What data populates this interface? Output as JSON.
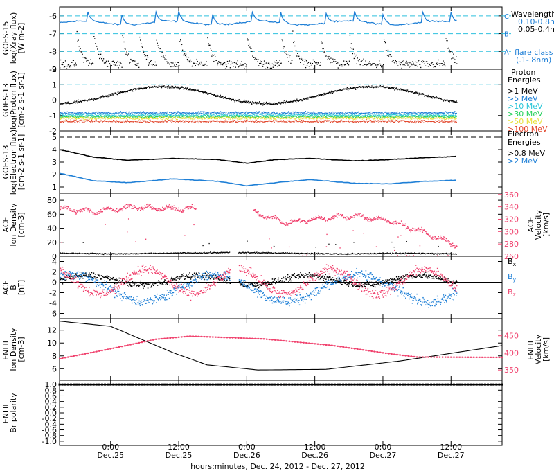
{
  "colors": {
    "black": "#000000",
    "blue": "#1e7fd6",
    "cyan": "#2ac6d8",
    "pink": "#f0416d",
    "green": "#25d05a",
    "yellow": "#e8e03a",
    "orange": "#f09a23",
    "red": "#e2462c",
    "dashed_cyan": "#2fc0de"
  },
  "footer": {
    "xlabel": "hours:minutes, Dec. 24, 2012 - Dec. 27, 2012",
    "ticks": [
      {
        "t": 9,
        "time": "0:00",
        "date": "Dec.25"
      },
      {
        "t": 21,
        "time": "12:00",
        "date": "Dec.25"
      },
      {
        "t": 33,
        "time": "0:00",
        "date": "Dec.26"
      },
      {
        "t": 45,
        "time": "12:00",
        "date": "Dec.26"
      },
      {
        "t": 57,
        "time": "0:00",
        "date": "Dec.27"
      },
      {
        "t": 69,
        "time": "12:00",
        "date": "Dec.27"
      }
    ],
    "xlim_hours_from_dec24_15h": [
      0,
      78
    ]
  },
  "chart_data": [
    {
      "id": "goes15-xray",
      "type": "line",
      "ylabel": [
        "GOES-15",
        "log(Xray flux)",
        "[W m-2]"
      ],
      "ylim": [
        -9,
        -5.5
      ],
      "yticks": [
        -9,
        -8,
        -7,
        -6
      ],
      "legend_title": "Wavelength",
      "legend": [
        {
          "label": "0.10-0.8nm",
          "color": "blue"
        },
        {
          "label": "0.05-0.4nm",
          "color": "black"
        },
        {
          "label": "flare class",
          "color": "blue"
        },
        {
          "label": "(.1-.8nm)",
          "color": "blue"
        }
      ],
      "flare_classes": [
        {
          "label": "C",
          "y": -6
        },
        {
          "label": "B",
          "y": -7
        },
        {
          "label": "A",
          "y": -8
        }
      ],
      "series": [
        {
          "name": "0.10-0.8nm",
          "baseline": -6.4,
          "spikes_x": [
            5,
            11,
            17,
            21,
            27,
            34,
            39,
            47,
            52,
            57,
            64,
            69
          ]
        },
        {
          "name": "0.05-0.4nm",
          "baseline": -8.5,
          "spikes_x": [
            3,
            6,
            11,
            14,
            17,
            21,
            26,
            33,
            39,
            41,
            46,
            51,
            57,
            68,
            70
          ]
        }
      ]
    },
    {
      "id": "goes13-proton",
      "type": "scatter",
      "ylabel": [
        "GOES-13",
        "log(Proton flux)",
        "[cm-2 s-1 sr-1]"
      ],
      "ylim": [
        -2,
        2
      ],
      "yticks": [
        -2,
        -1,
        0,
        1,
        2
      ],
      "reference_line": 1,
      "legend_title": [
        "Proton",
        "Energies"
      ],
      "series": [
        {
          "name": ">1 MeV",
          "color": "black",
          "level": 0.3
        },
        {
          "name": ">5 MeV",
          "color": "blue",
          "level": -0.8
        },
        {
          "name": ">10 MeV",
          "color": "cyan",
          "level": -0.95
        },
        {
          "name": ">30 MeV",
          "color": "green",
          "level": -1.05
        },
        {
          "name": ">50 MeV",
          "color": "yellow",
          "level": -1.15
        },
        {
          "name": ">100 MeV",
          "color": "red",
          "level": -1.35
        }
      ]
    },
    {
      "id": "goes13-electron",
      "type": "line",
      "ylabel": [
        "GOES-13",
        "log(Electron flux)",
        "[cm-2 s-1 sr-1]"
      ],
      "ylim": [
        0.5,
        5.5
      ],
      "yticks": [
        1,
        2,
        3,
        4,
        5
      ],
      "reference_line": 5,
      "legend_title": [
        "Electron",
        "Energies"
      ],
      "series": [
        {
          "name": ">0.8 MeV",
          "color": "black",
          "x": [
            0,
            6,
            12,
            20,
            28,
            33,
            38,
            44,
            52,
            58,
            64,
            70
          ],
          "y": [
            4.0,
            3.4,
            3.15,
            3.3,
            3.2,
            2.9,
            3.2,
            3.3,
            3.1,
            3.2,
            3.35,
            3.45
          ]
        },
        {
          "name": ">2 MeV",
          "color": "blue",
          "x": [
            0,
            6,
            12,
            20,
            28,
            33,
            38,
            44,
            52,
            58,
            64,
            70
          ],
          "y": [
            2.1,
            1.5,
            1.35,
            1.65,
            1.45,
            1.1,
            1.35,
            1.6,
            1.3,
            1.25,
            1.45,
            1.55
          ]
        }
      ]
    },
    {
      "id": "ace-plasma",
      "type": "scatter",
      "ylabel": [
        "ACE",
        "Ion Density",
        "[cm-3]"
      ],
      "ylim": [
        0,
        90
      ],
      "yticks": [
        0,
        20,
        40,
        60,
        80
      ],
      "y2label": [
        "ACE",
        "Velocity",
        "[km/s]"
      ],
      "y2lim": [
        260,
        362
      ],
      "y2ticks": [
        260,
        280,
        300,
        320,
        340,
        360
      ],
      "series": [
        {
          "name": "Ion Density",
          "color": "black",
          "x": [
            0,
            10,
            20,
            30,
            40,
            50,
            60,
            70
          ],
          "y": [
            5,
            4,
            5,
            6,
            5,
            4,
            5,
            4
          ]
        },
        {
          "name": "Velocity",
          "color": "pink",
          "x": [
            0,
            6,
            12,
            18,
            24,
            30,
            34,
            40,
            46,
            52,
            58,
            64,
            70
          ],
          "y": [
            338,
            333,
            340,
            338,
            338,
            null,
            332,
            315,
            322,
            326,
            318,
            300,
            278
          ]
        }
      ]
    },
    {
      "id": "ace-mag",
      "type": "scatter",
      "ylabel": [
        "ACE",
        "B",
        "[nT]"
      ],
      "ylim": [
        -7,
        5
      ],
      "yticks": [
        -6,
        -4,
        -2,
        0,
        2,
        4
      ],
      "series": [
        {
          "name": "Bx",
          "color": "black",
          "label_main": "B",
          "label_sub": "x",
          "level": 0.5
        },
        {
          "name": "By",
          "color": "blue",
          "label_main": "B",
          "label_sub": "y",
          "level": -1.0
        },
        {
          "name": "Bz",
          "color": "pink",
          "label_main": "B",
          "label_sub": "z",
          "level": 0.2
        }
      ]
    },
    {
      "id": "enlil-plasma",
      "type": "line",
      "ylabel": [
        "ENLIL",
        "Ion Density",
        "[cm-3]"
      ],
      "ylim": [
        4.2,
        13.8
      ],
      "yticks": [
        6,
        8,
        10,
        12
      ],
      "y2label": [
        "ENLIL",
        "Velocity",
        "[km/s]"
      ],
      "y2lim": [
        320,
        500
      ],
      "y2ticks": [
        350,
        400,
        450
      ],
      "series": [
        {
          "name": "Ion Density",
          "color": "black",
          "x": [
            0,
            9,
            20,
            26,
            35,
            47,
            60,
            78
          ],
          "y": [
            13.4,
            12.6,
            8.5,
            6.6,
            5.8,
            5.9,
            7.2,
            9.6
          ]
        },
        {
          "name": "Velocity",
          "color": "pink",
          "x": [
            0,
            9,
            17,
            23,
            36,
            48,
            58,
            63,
            78
          ],
          "y": [
            383,
            412,
            440,
            449,
            441,
            422,
            398,
            388,
            387
          ]
        }
      ]
    },
    {
      "id": "enlil-polarity",
      "type": "line",
      "ylabel": [
        "ENLIL",
        "Br polarity"
      ],
      "ylim": [
        -1.15,
        1.15
      ],
      "yticks": [
        -1.0,
        -0.8,
        -0.6,
        -0.4,
        -0.2,
        0.0,
        0.2,
        0.4,
        0.6,
        0.8,
        1.0
      ],
      "series": [
        {
          "name": "Br polarity",
          "color": "black",
          "x": [
            0,
            78
          ],
          "y": [
            1.0,
            1.0
          ]
        }
      ]
    }
  ]
}
